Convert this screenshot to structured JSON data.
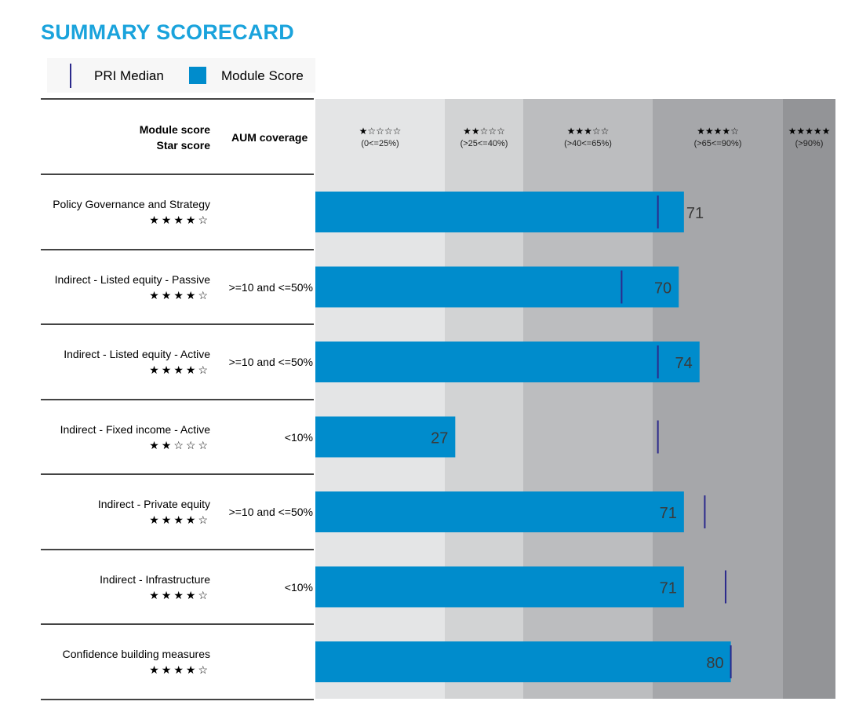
{
  "title": "SUMMARY SCORECARD",
  "legend": {
    "median_label": "PRI Median",
    "score_label": "Module Score",
    "median_color": "#2c2a8c",
    "score_color": "#008ccc"
  },
  "headers": {
    "module_score": "Module score",
    "star_score": "Star score",
    "aum_coverage": "AUM coverage"
  },
  "chart_data": {
    "type": "bar",
    "orientation": "horizontal",
    "xlim": [
      0,
      100
    ],
    "bands": [
      {
        "stars": "★☆☆☆☆",
        "range": "(0<=25%)",
        "from": 0,
        "to": 25,
        "color": "#e4e5e6"
      },
      {
        "stars": "★★☆☆☆",
        "range": "(>25<=40%)",
        "from": 25,
        "to": 40,
        "color": "#d2d3d4"
      },
      {
        "stars": "★★★☆☆",
        "range": "(>40<=65%)",
        "from": 40,
        "to": 65,
        "color": "#bcbdbf"
      },
      {
        "stars": "★★★★☆",
        "range": "(>65<=90%)",
        "from": 65,
        "to": 90,
        "color": "#a6a7aa"
      },
      {
        "stars": "★★★★★",
        "range": "(>90%)",
        "from": 90,
        "to": 100,
        "color": "#939497"
      }
    ],
    "rows": [
      {
        "name": "Policy Governance and Strategy",
        "stars": "★★★★☆",
        "aum": "",
        "score": 71,
        "median": 66
      },
      {
        "name": "Indirect - Listed equity - Passive",
        "stars": "★★★★☆",
        "aum": ">=10 and <=50%",
        "score": 70,
        "median": 59
      },
      {
        "name": "Indirect - Listed equity - Active",
        "stars": "★★★★☆",
        "aum": ">=10 and <=50%",
        "score": 74,
        "median": 66
      },
      {
        "name": "Indirect - Fixed income - Active",
        "stars": "★★☆☆☆",
        "aum": "<10%",
        "score": 27,
        "median": 66
      },
      {
        "name": "Indirect - Private equity",
        "stars": "★★★★☆",
        "aum": ">=10 and <=50%",
        "score": 71,
        "median": 75
      },
      {
        "name": "Indirect - Infrastructure",
        "stars": "★★★★☆",
        "aum": "<10%",
        "score": 71,
        "median": 79
      },
      {
        "name": "Confidence building measures",
        "stars": "★★★★☆",
        "aum": "",
        "score": 80,
        "median": 80
      }
    ]
  }
}
